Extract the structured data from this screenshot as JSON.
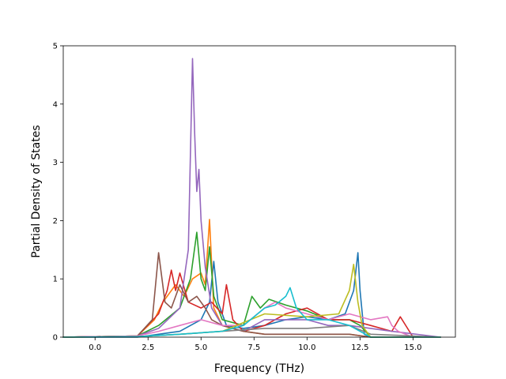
{
  "chart_data": {
    "type": "line",
    "title": "",
    "xlabel": "Frequency (THz)",
    "ylabel": "Partial Density of States",
    "xlim": [
      -1.5,
      17.0
    ],
    "ylim": [
      0,
      5
    ],
    "x_ticks": [
      0.0,
      2.5,
      5.0,
      7.5,
      10.0,
      12.5,
      15.0
    ],
    "x_tick_labels": [
      "0.0",
      "2.5",
      "5.0",
      "7.5",
      "10.0",
      "12.5",
      "15.0"
    ],
    "y_ticks": [
      0,
      1,
      2,
      3,
      4,
      5
    ],
    "y_tick_labels": [
      "0",
      "1",
      "2",
      "3",
      "4",
      "5"
    ],
    "grid": false,
    "legend": "none",
    "series": [
      {
        "color": "#1f77b4",
        "x": [
          -1.5,
          2.0,
          3.0,
          4.0,
          4.5,
          5.0,
          5.4,
          5.6,
          5.8,
          6.2,
          7.0,
          8.0,
          9.0,
          10.0,
          11.0,
          11.8,
          12.2,
          12.4,
          12.5,
          12.7,
          13.0,
          14.0,
          16.3
        ],
        "y": [
          0,
          0.0,
          0.05,
          0.1,
          0.2,
          0.3,
          0.6,
          1.3,
          0.6,
          0.2,
          0.15,
          0.2,
          0.3,
          0.35,
          0.3,
          0.4,
          0.8,
          1.45,
          0.8,
          0.05,
          0.0,
          0.0,
          0
        ]
      },
      {
        "color": "#ff7f0e",
        "x": [
          -1.5,
          2.0,
          2.8,
          3.2,
          3.8,
          4.2,
          4.6,
          5.0,
          5.2,
          5.4,
          5.6,
          6.0,
          7.0,
          8.0,
          10.0,
          12.0,
          13.0,
          16.3
        ],
        "y": [
          0,
          0.02,
          0.3,
          0.6,
          0.9,
          0.7,
          1.0,
          1.1,
          0.9,
          2.02,
          0.5,
          0.2,
          0.1,
          0.05,
          0.05,
          0.05,
          0.0,
          0
        ]
      },
      {
        "color": "#2ca02c",
        "x": [
          -1.5,
          2.0,
          3.0,
          4.0,
          4.5,
          4.8,
          5.0,
          5.2,
          5.4,
          5.6,
          6.0,
          7.0,
          7.4,
          7.8,
          8.2,
          9.0,
          10.0,
          11.0,
          12.0,
          12.5,
          13.0,
          16.3
        ],
        "y": [
          0,
          0.02,
          0.2,
          0.5,
          1.0,
          1.8,
          1.0,
          0.8,
          1.55,
          0.7,
          0.3,
          0.2,
          0.7,
          0.5,
          0.65,
          0.55,
          0.45,
          0.3,
          0.3,
          0.2,
          0.0,
          0
        ]
      },
      {
        "color": "#d62728",
        "x": [
          -1.5,
          2.0,
          3.0,
          3.4,
          3.6,
          3.8,
          4.0,
          4.4,
          5.0,
          5.5,
          6.0,
          6.2,
          6.5,
          7.0,
          8.0,
          9.0,
          10.0,
          11.0,
          12.0,
          13.0,
          14.0,
          14.4,
          15.0,
          16.3
        ],
        "y": [
          0,
          0.02,
          0.4,
          0.8,
          1.15,
          0.8,
          1.1,
          0.6,
          0.5,
          0.6,
          0.4,
          0.9,
          0.3,
          0.1,
          0.2,
          0.4,
          0.5,
          0.3,
          0.3,
          0.2,
          0.1,
          0.35,
          0.0,
          0
        ]
      },
      {
        "color": "#9467bd",
        "x": [
          -1.5,
          2.0,
          3.0,
          4.0,
          4.4,
          4.6,
          4.7,
          4.8,
          4.9,
          5.0,
          5.2,
          5.5,
          6.0,
          7.0,
          8.0,
          9.0,
          10.0,
          11.0,
          12.0,
          13.0,
          14.0,
          16.3
        ],
        "y": [
          0,
          0.02,
          0.15,
          0.5,
          1.5,
          4.78,
          3.5,
          2.5,
          2.88,
          2.0,
          1.2,
          0.5,
          0.2,
          0.1,
          0.3,
          0.3,
          0.3,
          0.2,
          0.2,
          0.15,
          0.1,
          0
        ]
      },
      {
        "color": "#8c564b",
        "x": [
          -1.5,
          2.0,
          2.7,
          3.0,
          3.3,
          3.6,
          4.0,
          4.4,
          4.8,
          5.2,
          5.5,
          6.0,
          7.0,
          8.0,
          10.0,
          12.0,
          13.0,
          16.3
        ],
        "y": [
          0,
          0.02,
          0.3,
          1.45,
          0.6,
          0.5,
          0.9,
          0.6,
          0.7,
          0.5,
          0.3,
          0.2,
          0.1,
          0.05,
          0.05,
          0.05,
          0.0,
          0
        ]
      },
      {
        "color": "#e377c2",
        "x": [
          -1.5,
          2.0,
          3.0,
          4.0,
          5.0,
          6.0,
          7.0,
          8.0,
          8.5,
          9.0,
          10.0,
          11.0,
          12.0,
          13.0,
          13.8,
          14.0,
          14.3,
          15.0,
          16.3
        ],
        "y": [
          0,
          0.02,
          0.1,
          0.2,
          0.3,
          0.2,
          0.2,
          0.5,
          0.6,
          0.5,
          0.4,
          0.3,
          0.4,
          0.3,
          0.35,
          0.2,
          0.1,
          0.0,
          0
        ]
      },
      {
        "color": "#7f7f7f",
        "x": [
          -1.5,
          2.0,
          4.0,
          6.0,
          8.0,
          10.0,
          12.0,
          13.0,
          16.3
        ],
        "y": [
          0,
          0.01,
          0.05,
          0.1,
          0.15,
          0.15,
          0.2,
          0.05,
          0
        ]
      },
      {
        "color": "#bcbd22",
        "x": [
          -1.5,
          2.0,
          4.0,
          6.0,
          8.0,
          10.0,
          11.5,
          12.0,
          12.2,
          12.4,
          12.6,
          13.0,
          16.3
        ],
        "y": [
          0,
          0.01,
          0.05,
          0.1,
          0.4,
          0.35,
          0.4,
          0.8,
          1.25,
          0.6,
          0.2,
          0.0,
          0
        ]
      },
      {
        "color": "#17becf",
        "x": [
          -1.5,
          2.0,
          4.0,
          6.0,
          7.0,
          8.0,
          8.5,
          9.0,
          9.2,
          9.5,
          10.0,
          11.0,
          12.0,
          12.5,
          13.0,
          16.3
        ],
        "y": [
          0,
          0.01,
          0.05,
          0.1,
          0.2,
          0.5,
          0.55,
          0.7,
          0.85,
          0.5,
          0.3,
          0.3,
          0.2,
          0.1,
          0.0,
          0
        ]
      }
    ]
  }
}
